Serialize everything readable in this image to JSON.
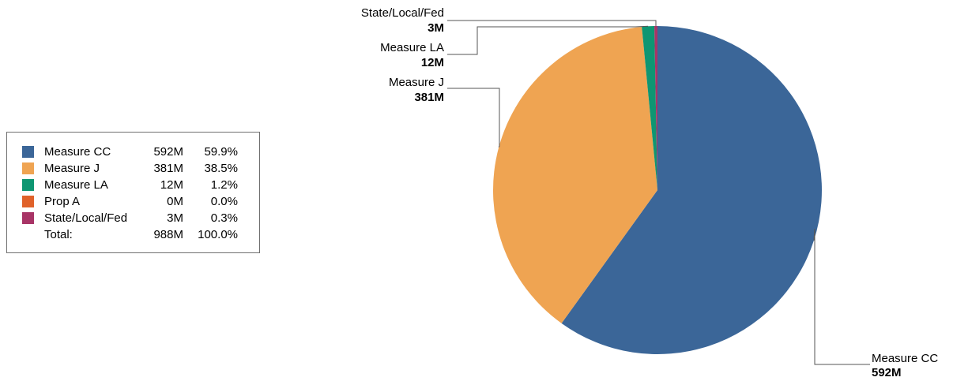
{
  "chart_data": {
    "type": "pie",
    "slices": [
      {
        "name": "Measure CC",
        "label": "592M",
        "value": 592,
        "percent": "59.9%",
        "color": "#3b6698"
      },
      {
        "name": "Measure J",
        "label": "381M",
        "value": 381,
        "percent": "38.5%",
        "color": "#efa452"
      },
      {
        "name": "Measure LA",
        "label": "12M",
        "value": 12,
        "percent": "1.2%",
        "color": "#0e9672"
      },
      {
        "name": "Prop A",
        "label": "0M",
        "value": 0,
        "percent": "0.0%",
        "color": "#e0622a"
      },
      {
        "name": "State/Local/Fed",
        "label": "3M",
        "value": 3,
        "percent": "0.3%",
        "color": "#a83466"
      }
    ],
    "total": {
      "label": "Total:",
      "value": "988M",
      "percent": "100.0%"
    },
    "legend_position": "left"
  }
}
